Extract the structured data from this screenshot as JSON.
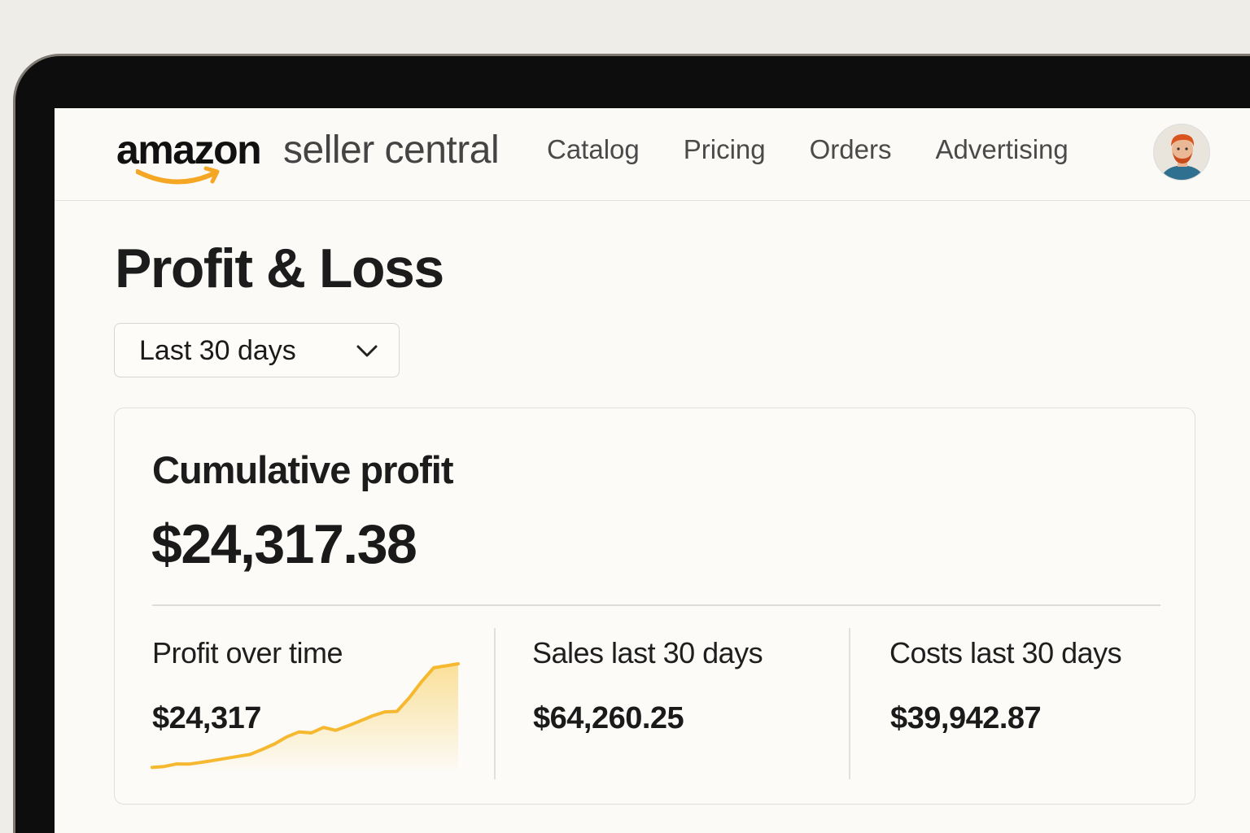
{
  "header": {
    "logo_brand": "amazon",
    "logo_product": "seller central",
    "nav": [
      {
        "label": "Catalog"
      },
      {
        "label": "Pricing"
      },
      {
        "label": "Orders"
      },
      {
        "label": "Advertising"
      }
    ],
    "avatar_icon": "user-avatar"
  },
  "page": {
    "title": "Profit & Loss",
    "range_select": {
      "value": "Last 30 days",
      "icon": "chevron-down-icon"
    }
  },
  "card": {
    "title": "Cumulative profit",
    "total": "$24,317.38",
    "profit_over_time": {
      "label": "Profit over time",
      "value": "$24,317"
    },
    "sales": {
      "label": "Sales last 30 days",
      "value": "$64,260.25"
    },
    "costs": {
      "label": "Costs last 30 days",
      "value": "$39,942.87"
    }
  },
  "colors": {
    "accent": "#f5b82e",
    "text": "#1a1a1a",
    "nav_text": "#4a4a4a"
  },
  "chart_data": {
    "type": "area",
    "x": [
      0,
      1,
      2,
      3,
      4,
      5,
      6,
      7,
      8,
      9,
      10,
      11,
      12,
      13,
      14,
      15,
      16,
      17,
      18,
      19,
      20,
      21,
      22,
      23,
      24,
      25
    ],
    "values": [
      0.5,
      1.5,
      4,
      3.8,
      5.5,
      7.5,
      9.5,
      11.5,
      13.5,
      18.5,
      24,
      31,
      36,
      35,
      40.5,
      37.5,
      42,
      47,
      52,
      56,
      56.5,
      70,
      86,
      100,
      102,
      104
    ],
    "xlabel": "",
    "ylabel": "",
    "grid": false,
    "legend": "none"
  }
}
